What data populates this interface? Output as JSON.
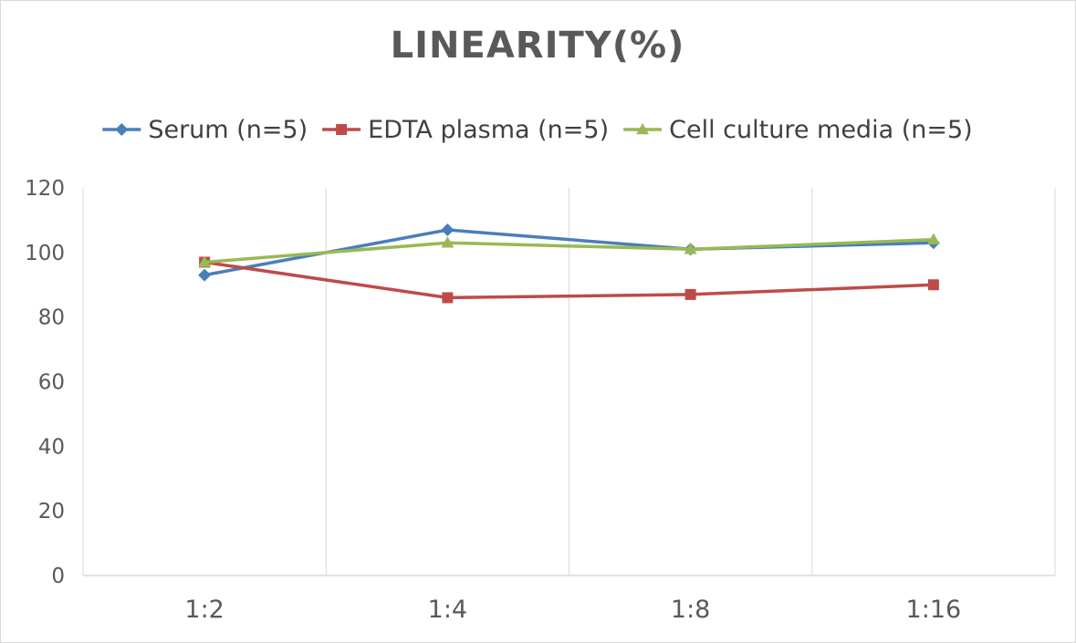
{
  "chart_data": {
    "type": "line",
    "title": "LINEARITY(%)",
    "xlabel": "",
    "ylabel": "",
    "categories": [
      "1:2",
      "1:4",
      "1:8",
      "1:16"
    ],
    "ylim": [
      0,
      120
    ],
    "yticks": [
      0,
      20,
      40,
      60,
      80,
      100,
      120
    ],
    "grid": "vertical",
    "legend_position": "top",
    "series": [
      {
        "name": "Serum (n=5)",
        "values": [
          93,
          107,
          101,
          103
        ],
        "color": "#4a7ebb",
        "marker": "diamond"
      },
      {
        "name": "EDTA plasma (n=5)",
        "values": [
          97,
          86,
          87,
          90
        ],
        "color": "#be4b48",
        "marker": "square"
      },
      {
        "name": "Cell culture media (n=5)",
        "values": [
          97,
          103,
          101,
          104
        ],
        "color": "#98b954",
        "marker": "triangle"
      }
    ]
  }
}
